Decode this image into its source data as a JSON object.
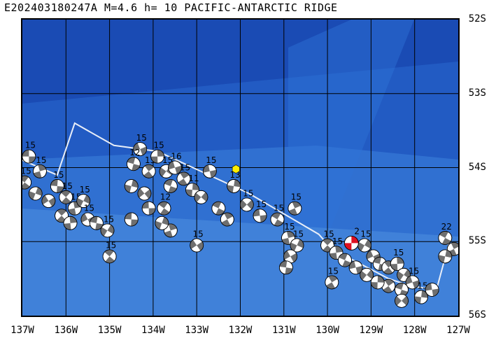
{
  "title": "E202403180247A M=4.6 h= 10 PACIFIC-ANTARCTIC RIDGE",
  "lat_labels": [
    "52S",
    "53S",
    "54S",
    "55S",
    "56S"
  ],
  "lon_labels": [
    "137W",
    "136W",
    "135W",
    "134W",
    "133W",
    "132W",
    "131W",
    "130W",
    "129W",
    "128W",
    "127W"
  ],
  "map": {
    "lon_range": [
      -137,
      -127
    ],
    "lat_range": [
      -56,
      -52
    ],
    "colors": {
      "ocean_deep": "#1a4bb4",
      "ocean_mid": "#2a6ad0",
      "ocean_light": "#3d82dc",
      "plate_boundary": "#e8eef8",
      "grid": "#000000",
      "epicenter": "#ffee00",
      "mechanism_dark": "#6f6f6f",
      "mechanism_current": "#e01020"
    },
    "plate_boundary": [
      [
        -137,
        -53.9
      ],
      [
        -136.2,
        -54.1
      ],
      [
        -135.8,
        -53.4
      ],
      [
        -134.9,
        -53.7
      ],
      [
        -133.9,
        -53.78
      ],
      [
        -131.8,
        -54.35
      ],
      [
        -130.2,
        -54.9
      ],
      [
        -129.9,
        -55.1
      ],
      [
        -128.6,
        -55.5
      ],
      [
        -128.1,
        -55.6
      ],
      [
        -127.5,
        -55.65
      ],
      [
        -127.2,
        -55.0
      ]
    ],
    "epicenter": {
      "lon": -132.1,
      "lat": -54.02
    },
    "current_event": {
      "lon": -129.45,
      "lat": -55.02,
      "label": "2"
    },
    "depth_label": "15",
    "mechanisms": [
      {
        "lon": -136.85,
        "lat": -53.85,
        "label": "15"
      },
      {
        "lon": -136.95,
        "lat": -54.2,
        "label": "15"
      },
      {
        "lon": -136.6,
        "lat": -54.05,
        "label": "15"
      },
      {
        "lon": -136.7,
        "lat": -54.35,
        "label": ""
      },
      {
        "lon": -136.4,
        "lat": -54.45,
        "label": ""
      },
      {
        "lon": -136.2,
        "lat": -54.25,
        "label": "15"
      },
      {
        "lon": -136.0,
        "lat": -54.4,
        "label": "15"
      },
      {
        "lon": -135.8,
        "lat": -54.55,
        "label": "15"
      },
      {
        "lon": -135.6,
        "lat": -54.45,
        "label": "15"
      },
      {
        "lon": -135.5,
        "lat": -54.7,
        "label": "15"
      },
      {
        "lon": -135.3,
        "lat": -54.75,
        "label": ""
      },
      {
        "lon": -136.1,
        "lat": -54.65,
        "label": ""
      },
      {
        "lon": -135.9,
        "lat": -54.75,
        "label": ""
      },
      {
        "lon": -135.05,
        "lat": -54.85,
        "label": "15"
      },
      {
        "lon": -134.3,
        "lat": -53.75,
        "label": "15"
      },
      {
        "lon": -134.45,
        "lat": -53.95,
        "label": "12"
      },
      {
        "lon": -134.1,
        "lat": -54.05,
        "label": "15"
      },
      {
        "lon": -133.9,
        "lat": -53.85,
        "label": "15"
      },
      {
        "lon": -133.7,
        "lat": -54.05,
        "label": "15"
      },
      {
        "lon": -133.5,
        "lat": -54.0,
        "label": "16"
      },
      {
        "lon": -133.6,
        "lat": -54.25,
        "label": ""
      },
      {
        "lon": -133.3,
        "lat": -54.15,
        "label": "15"
      },
      {
        "lon": -133.1,
        "lat": -54.3,
        "label": "11"
      },
      {
        "lon": -132.9,
        "lat": -54.4,
        "label": ""
      },
      {
        "lon": -132.7,
        "lat": -54.05,
        "label": "15"
      },
      {
        "lon": -132.5,
        "lat": -54.55,
        "label": ""
      },
      {
        "lon": -132.3,
        "lat": -54.7,
        "label": ""
      },
      {
        "lon": -132.15,
        "lat": -54.25,
        "label": "13"
      },
      {
        "lon": -131.85,
        "lat": -54.5,
        "label": "15"
      },
      {
        "lon": -131.55,
        "lat": -54.65,
        "label": "15"
      },
      {
        "lon": -131.15,
        "lat": -54.7,
        "label": "15"
      },
      {
        "lon": -130.75,
        "lat": -54.55,
        "label": "15"
      },
      {
        "lon": -134.5,
        "lat": -54.25,
        "label": ""
      },
      {
        "lon": -134.2,
        "lat": -54.35,
        "label": ""
      },
      {
        "lon": -134.1,
        "lat": -54.55,
        "label": ""
      },
      {
        "lon": -133.75,
        "lat": -54.55,
        "label": "12"
      },
      {
        "lon": -133.6,
        "lat": -54.85,
        "label": ""
      },
      {
        "lon": -133.8,
        "lat": -54.75,
        "label": ""
      },
      {
        "lon": -133.0,
        "lat": -55.05,
        "label": "15"
      },
      {
        "lon": -134.5,
        "lat": -54.7,
        "label": ""
      },
      {
        "lon": -135.0,
        "lat": -55.2,
        "label": "15"
      },
      {
        "lon": -130.9,
        "lat": -54.95,
        "label": "15"
      },
      {
        "lon": -130.7,
        "lat": -55.05,
        "label": "15"
      },
      {
        "lon": -130.85,
        "lat": -55.2,
        "label": ""
      },
      {
        "lon": -130.95,
        "lat": -55.35,
        "label": ""
      },
      {
        "lon": -130.0,
        "lat": -55.05,
        "label": "15"
      },
      {
        "lon": -129.8,
        "lat": -55.15,
        "label": "15"
      },
      {
        "lon": -129.15,
        "lat": -55.05,
        "label": "15"
      },
      {
        "lon": -128.95,
        "lat": -55.2,
        "label": ""
      },
      {
        "lon": -128.8,
        "lat": -55.3,
        "label": ""
      },
      {
        "lon": -128.6,
        "lat": -55.35,
        "label": ""
      },
      {
        "lon": -128.4,
        "lat": -55.3,
        "label": "15"
      },
      {
        "lon": -128.25,
        "lat": -55.45,
        "label": ""
      },
      {
        "lon": -128.05,
        "lat": -55.55,
        "label": "15"
      },
      {
        "lon": -128.3,
        "lat": -55.65,
        "label": ""
      },
      {
        "lon": -128.6,
        "lat": -55.6,
        "label": ""
      },
      {
        "lon": -128.85,
        "lat": -55.55,
        "label": ""
      },
      {
        "lon": -129.1,
        "lat": -55.45,
        "label": ""
      },
      {
        "lon": -129.35,
        "lat": -55.35,
        "label": ""
      },
      {
        "lon": -129.6,
        "lat": -55.25,
        "label": ""
      },
      {
        "lon": -129.9,
        "lat": -55.55,
        "label": "15"
      },
      {
        "lon": -127.85,
        "lat": -55.75,
        "label": "15"
      },
      {
        "lon": -128.3,
        "lat": -55.8,
        "label": ""
      },
      {
        "lon": -127.6,
        "lat": -55.65,
        "label": ""
      },
      {
        "lon": -127.3,
        "lat": -54.95,
        "label": "22"
      },
      {
        "lon": -127.1,
        "lat": -55.1,
        "label": ""
      },
      {
        "lon": -127.3,
        "lat": -55.2,
        "label": ""
      }
    ]
  }
}
